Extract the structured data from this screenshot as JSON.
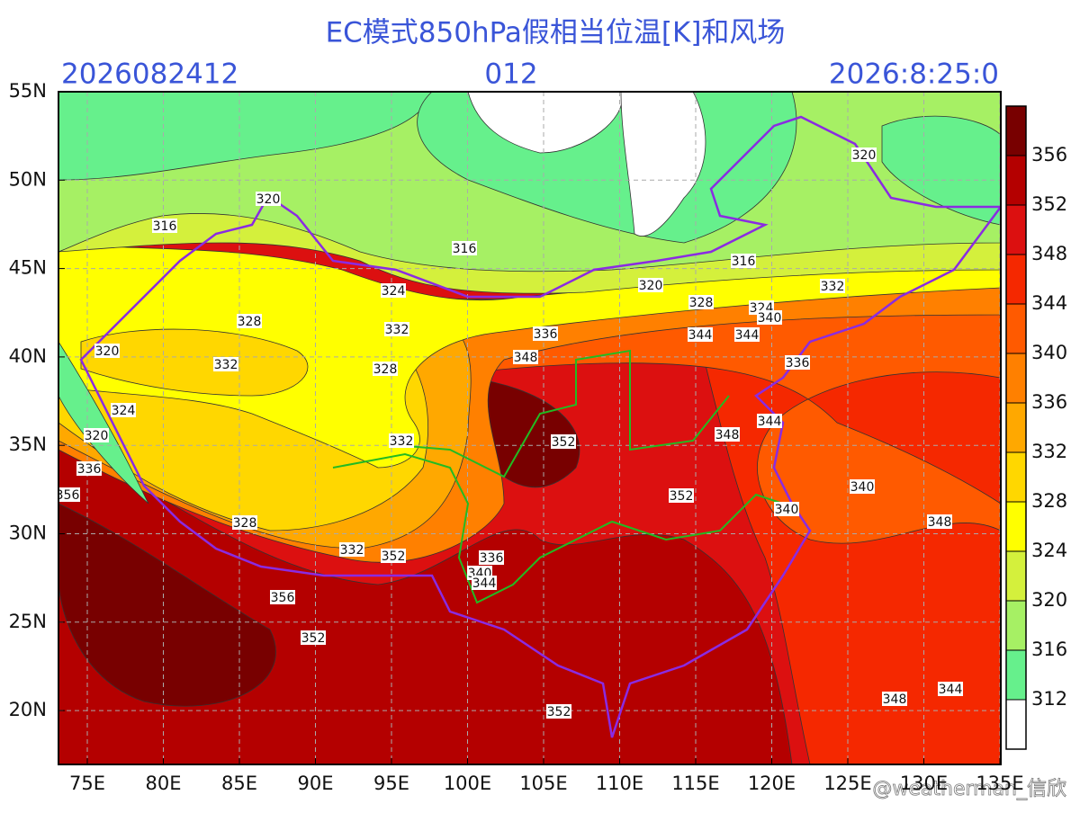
{
  "header": {
    "title": "EC模式850hPa假相当位温[K]和风场",
    "init_time": "2026082412",
    "forecast_hour": "012",
    "valid_time": "2026:8:25:0"
  },
  "axes": {
    "lat_labels": [
      "55N",
      "50N",
      "45N",
      "40N",
      "35N",
      "30N",
      "25N",
      "20N"
    ],
    "lon_labels": [
      "75E",
      "80E",
      "85E",
      "90E",
      "95E",
      "100E",
      "105E",
      "110E",
      "115E",
      "120E",
      "125E",
      "130E",
      "135E"
    ]
  },
  "colorbar": {
    "levels": [
      312,
      316,
      320,
      324,
      328,
      332,
      336,
      340,
      344,
      348,
      352,
      356
    ],
    "colors": [
      "#ffffff",
      "#66f08c",
      "#a6f064",
      "#d4f03c",
      "#ffff00",
      "#ffd700",
      "#ffa800",
      "#ff8000",
      "#ff5a00",
      "#f52800",
      "#dc1010",
      "#b40000",
      "#780000"
    ]
  },
  "contour_labels": [
    316,
    316,
    316,
    320,
    320,
    320,
    320,
    320,
    324,
    324,
    324,
    328,
    328,
    328,
    328,
    332,
    332,
    332,
    332,
    332,
    336,
    336,
    336,
    336,
    340,
    340,
    340,
    340,
    344,
    344,
    344,
    344,
    344,
    348,
    348,
    348,
    348,
    352,
    352,
    352,
    352,
    352,
    356,
    356
  ],
  "watermark": "@weatherman_信欣"
}
